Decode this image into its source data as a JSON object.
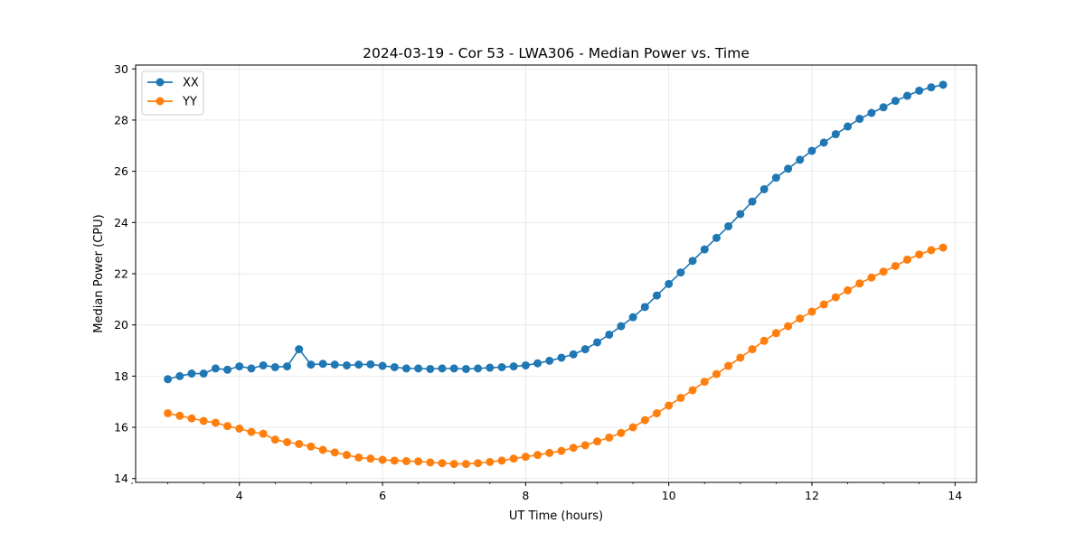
{
  "chart_data": {
    "type": "line",
    "title": "2024-03-19 - Cor 53 - LWA306 - Median Power vs. Time",
    "xlabel": "UT Time (hours)",
    "ylabel": "Median Power (CPU)",
    "xlim": [
      2.55,
      14.3
    ],
    "ylim": [
      13.85,
      30.15
    ],
    "xticks": [
      4,
      6,
      8,
      10,
      12,
      14
    ],
    "xtick_labels": [
      "4",
      "6",
      "8",
      "10",
      "12",
      "14"
    ],
    "xminor": [
      2.5,
      3.0,
      3.5,
      4.5,
      5.0,
      5.5,
      6.5,
      7.0,
      7.5,
      8.5,
      9.0,
      9.5,
      10.5,
      11.0,
      11.5,
      12.5,
      13.0,
      13.5
    ],
    "yticks": [
      14,
      16,
      18,
      20,
      22,
      24,
      26,
      28,
      30
    ],
    "ytick_labels": [
      "14",
      "16",
      "18",
      "20",
      "22",
      "24",
      "26",
      "28",
      "30"
    ],
    "grid": true,
    "legend_position": "top-left",
    "x": [
      3.0,
      3.167,
      3.333,
      3.5,
      3.667,
      3.833,
      4.0,
      4.167,
      4.333,
      4.5,
      4.667,
      4.833,
      5.0,
      5.167,
      5.333,
      5.5,
      5.667,
      5.833,
      6.0,
      6.167,
      6.333,
      6.5,
      6.667,
      6.833,
      7.0,
      7.167,
      7.333,
      7.5,
      7.667,
      7.833,
      8.0,
      8.167,
      8.333,
      8.5,
      8.667,
      8.833,
      9.0,
      9.167,
      9.333,
      9.5,
      9.667,
      9.833,
      10.0,
      10.167,
      10.333,
      10.5,
      10.667,
      10.833,
      11.0,
      11.167,
      11.333,
      11.5,
      11.667,
      11.833,
      12.0,
      12.167,
      12.333,
      12.5,
      12.667,
      12.833,
      13.0,
      13.167,
      13.333,
      13.5,
      13.667,
      13.833
    ],
    "series": [
      {
        "name": "XX",
        "color": "#1f77b4",
        "values": [
          17.88,
          18.0,
          18.1,
          18.1,
          18.3,
          18.25,
          18.38,
          18.3,
          18.42,
          18.35,
          18.38,
          19.05,
          18.45,
          18.48,
          18.45,
          18.42,
          18.45,
          18.46,
          18.4,
          18.35,
          18.3,
          18.3,
          18.28,
          18.3,
          18.3,
          18.28,
          18.3,
          18.33,
          18.35,
          18.38,
          18.42,
          18.5,
          18.6,
          18.72,
          18.85,
          19.05,
          19.32,
          19.62,
          19.95,
          20.3,
          20.7,
          21.15,
          21.6,
          22.05,
          22.5,
          22.95,
          23.4,
          23.85,
          24.33,
          24.82,
          25.3,
          25.75,
          26.1,
          26.45,
          26.8,
          27.12,
          27.45,
          27.75,
          28.05,
          28.28,
          28.5,
          28.75,
          28.95,
          29.15,
          29.28,
          29.38
        ]
      },
      {
        "name": "YY",
        "color": "#ff7f0e",
        "values": [
          16.55,
          16.45,
          16.35,
          16.25,
          16.18,
          16.05,
          15.95,
          15.82,
          15.75,
          15.52,
          15.42,
          15.35,
          15.25,
          15.12,
          15.02,
          14.92,
          14.82,
          14.78,
          14.73,
          14.7,
          14.68,
          14.67,
          14.63,
          14.6,
          14.57,
          14.57,
          14.6,
          14.65,
          14.7,
          14.78,
          14.85,
          14.92,
          15.0,
          15.08,
          15.2,
          15.3,
          15.45,
          15.6,
          15.78,
          16.0,
          16.28,
          16.55,
          16.85,
          17.15,
          17.45,
          17.78,
          18.08,
          18.4,
          18.72,
          19.05,
          19.38,
          19.68,
          19.95,
          20.25,
          20.52,
          20.8,
          21.08,
          21.35,
          21.62,
          21.85,
          22.08,
          22.3,
          22.55,
          22.75,
          22.92,
          23.02
        ]
      }
    ]
  }
}
